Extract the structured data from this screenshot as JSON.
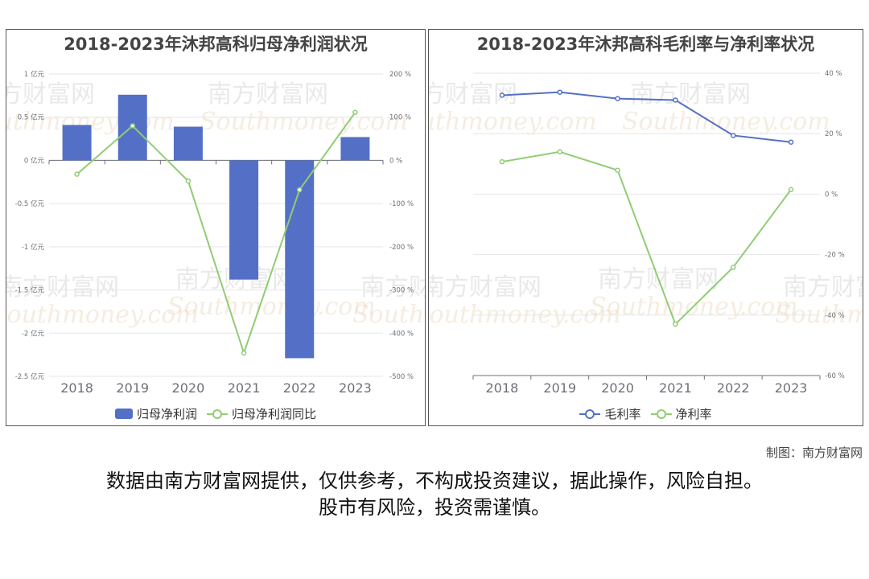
{
  "credit": "制图：南方财富网",
  "disclaimer_line1": "数据由南方财富网提供，仅供参考，不构成投资建议，据此操作，风险自担。",
  "disclaimer_line2": "股市有风险，投资需谨慎。",
  "watermark": {
    "text_cn": "南方财富网",
    "text_en": "Southmoney.com"
  },
  "chart_data": [
    {
      "type": "bar",
      "title": "2018-2023年沐邦高科归母净利润状况",
      "categories": [
        "2018",
        "2019",
        "2020",
        "2021",
        "2022",
        "2023"
      ],
      "left_axis": {
        "ylim": [
          -2.5,
          1
        ],
        "ticks": [
          1,
          0.5,
          0,
          -0.5,
          -1,
          -1.5,
          -2,
          -2.5
        ],
        "tick_labels": [
          "1 亿元",
          "0.5 亿元",
          "0 亿元",
          "-0.5 亿元",
          "-1 亿元",
          "-1.5 亿元",
          "-2 亿元",
          "-2.5 亿元"
        ]
      },
      "right_axis": {
        "ylim": [
          -500,
          200
        ],
        "ticks": [
          200,
          100,
          0,
          -100,
          -200,
          -300,
          -400,
          -500
        ],
        "tick_labels": [
          "200 %",
          "100 %",
          "0 %",
          "-100 %",
          "-200 %",
          "-300 %",
          "-400 %",
          "-500 %"
        ]
      },
      "series": [
        {
          "name": "归母净利润",
          "type": "bar",
          "axis": "left",
          "color": "#5470c6",
          "values": [
            0.41,
            0.76,
            0.39,
            -1.38,
            -2.29,
            0.27
          ]
        },
        {
          "name": "归母净利润同比",
          "type": "line",
          "axis": "right",
          "color": "#91cc75",
          "values": [
            -32,
            80,
            -48,
            -446,
            -68,
            111
          ]
        }
      ],
      "grid": true,
      "legend_position": "bottom"
    },
    {
      "type": "line",
      "title": "2018-2023年沐邦高科毛利率与净利率状况",
      "categories": [
        "2018",
        "2019",
        "2020",
        "2021",
        "2022",
        "2023"
      ],
      "right_axis": {
        "ylim": [
          -60,
          40
        ],
        "ticks": [
          40,
          20,
          0,
          -20,
          -40,
          -60
        ],
        "tick_labels": [
          "40 %",
          "20 %",
          "0 %",
          "-20 %",
          "-40 %",
          "-60 %"
        ]
      },
      "series": [
        {
          "name": "毛利率",
          "color": "#5470c6",
          "values": [
            32.7,
            33.7,
            31.6,
            31.1,
            19.4,
            17.2
          ]
        },
        {
          "name": "净利率",
          "color": "#91cc75",
          "values": [
            10.7,
            14.0,
            7.9,
            -43.0,
            -24.2,
            1.5
          ]
        }
      ],
      "grid": true,
      "legend_position": "bottom"
    }
  ]
}
